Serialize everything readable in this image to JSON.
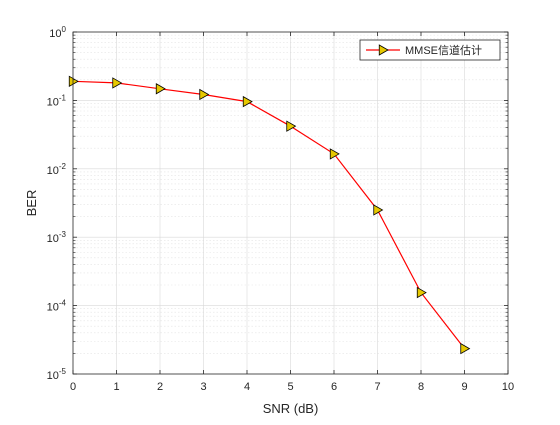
{
  "chart_data": {
    "type": "line",
    "title": "",
    "xlabel": "SNR (dB)",
    "ylabel": "BER",
    "xlim": [
      0,
      10
    ],
    "ylim": [
      1e-05,
      1
    ],
    "yscale": "log",
    "grid": true,
    "minor_grid": true,
    "legend_position": "top-right",
    "x_ticks": [
      0,
      1,
      2,
      3,
      4,
      5,
      6,
      7,
      8,
      9,
      10
    ],
    "y_tick_exponents": [
      -5,
      -4,
      -3,
      -2,
      -1,
      0
    ],
    "y_tick_base": "10",
    "series": [
      {
        "name": "MMSE信道估计",
        "color": "#ff0000",
        "marker": "triangle-right",
        "marker_fill": "#e6c800",
        "x": [
          0,
          1,
          2,
          3,
          4,
          5,
          6,
          7,
          8,
          9
        ],
        "y": [
          0.19,
          0.18,
          0.148,
          0.122,
          0.096,
          0.042,
          0.0165,
          0.0025,
          0.000155,
          2.35e-05
        ]
      }
    ]
  }
}
